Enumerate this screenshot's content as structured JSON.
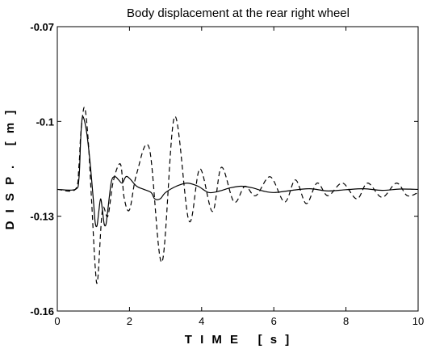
{
  "chart_data": {
    "type": "line",
    "title": "Body displacement at the rear right wheel",
    "xlabel": "T I M E   [ s ]",
    "ylabel": "D I S P .   [ m ]",
    "xlim": [
      0,
      10
    ],
    "ylim": [
      -0.16,
      -0.07
    ],
    "xticks": [
      "0",
      "2",
      "4",
      "6",
      "8",
      "10"
    ],
    "yticks": [
      "-0.07",
      "-0.1",
      "-0.13",
      "-0.16"
    ],
    "grid": false,
    "series": [
      {
        "style": "solid",
        "x": [
          0.0,
          0.5,
          0.6,
          0.65,
          0.7,
          0.8,
          0.9,
          1.0,
          1.05,
          1.1,
          1.15,
          1.2,
          1.25,
          1.3,
          1.35,
          1.4,
          1.5,
          1.6,
          1.7,
          1.8,
          1.9,
          2.0,
          2.2,
          2.4,
          2.6,
          2.7,
          2.85,
          3.0,
          3.3,
          3.6,
          3.9,
          4.2,
          4.5,
          4.8,
          5.1,
          5.4,
          5.7,
          6.0,
          6.5,
          7.0,
          7.5,
          8.0,
          8.5,
          9.0,
          9.5,
          10.0
        ],
        "y": [
          -0.1215,
          -0.1215,
          -0.118,
          -0.105,
          -0.0985,
          -0.1025,
          -0.112,
          -0.125,
          -0.132,
          -0.133,
          -0.1285,
          -0.1245,
          -0.128,
          -0.1325,
          -0.1325,
          -0.128,
          -0.119,
          -0.1175,
          -0.1185,
          -0.1195,
          -0.1175,
          -0.118,
          -0.1205,
          -0.1215,
          -0.1225,
          -0.1245,
          -0.1245,
          -0.1225,
          -0.1205,
          -0.1195,
          -0.1205,
          -0.1225,
          -0.122,
          -0.121,
          -0.1205,
          -0.121,
          -0.122,
          -0.1225,
          -0.1218,
          -0.1213,
          -0.122,
          -0.1216,
          -0.1213,
          -0.1218,
          -0.1214,
          -0.1215
        ]
      },
      {
        "style": "dashed",
        "x": [
          0.0,
          0.5,
          0.6,
          0.65,
          0.75,
          0.85,
          0.95,
          1.05,
          1.12,
          1.25,
          1.4,
          1.55,
          1.75,
          1.85,
          2.0,
          2.2,
          2.55,
          2.9,
          3.25,
          3.65,
          3.95,
          4.3,
          4.55,
          4.9,
          5.2,
          5.5,
          5.9,
          6.3,
          6.6,
          6.9,
          7.2,
          7.5,
          7.9,
          8.3,
          8.6,
          9.0,
          9.4,
          9.7,
          10.0
        ],
        "y": [
          -0.1215,
          -0.1215,
          -0.114,
          -0.104,
          -0.0955,
          -0.105,
          -0.125,
          -0.146,
          -0.15,
          -0.128,
          -0.13,
          -0.119,
          -0.1135,
          -0.124,
          -0.128,
          -0.1165,
          -0.1085,
          -0.1445,
          -0.0985,
          -0.1315,
          -0.115,
          -0.1285,
          -0.1145,
          -0.1255,
          -0.1205,
          -0.1235,
          -0.1175,
          -0.1255,
          -0.1185,
          -0.126,
          -0.1195,
          -0.1235,
          -0.1195,
          -0.1245,
          -0.1195,
          -0.124,
          -0.1195,
          -0.1235,
          -0.1225
        ]
      }
    ]
  }
}
